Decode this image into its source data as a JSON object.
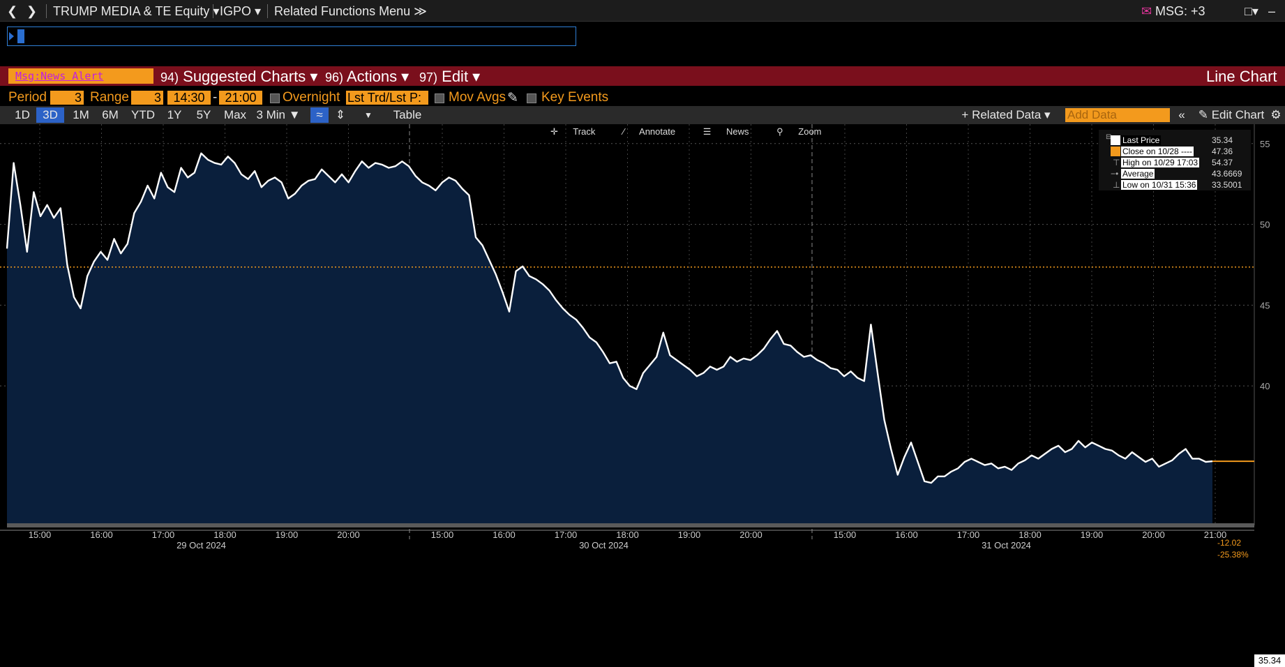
{
  "topbar": {
    "security": "TRUMP MEDIA & TE Equity ▾",
    "function": "IGPO ▾",
    "related": "Related Functions Menu ≫",
    "msg": "MSG: +3"
  },
  "redbar": {
    "alert": "Msg:News Alert",
    "suggested_num": "94)",
    "suggested": "Suggested Charts ▾",
    "actions_num": "96)",
    "actions": "Actions ▾",
    "edit_num": "97)",
    "edit": "Edit ▾",
    "chart_type": "Line Chart"
  },
  "period_row": {
    "period_label": "Period",
    "period_value": "3",
    "range_label": "Range",
    "range_value": "3",
    "time_start": "14:30",
    "dash": "-",
    "time_end": "21:00",
    "overnight": "Overnight",
    "lst_trd": "Lst Trd/Lst P:",
    "mov_avgs": "Mov Avgs",
    "key_events": "Key Events"
  },
  "toolbar": {
    "periods": [
      "1D",
      "3D",
      "1M",
      "6M",
      "YTD",
      "1Y",
      "5Y",
      "Max"
    ],
    "selected_period": "3D",
    "interval": "3 Min ▼",
    "table": "Table",
    "related_data": "+ Related Data ▾",
    "add_data_placeholder": "Add Data",
    "edit_chart": "Edit Chart"
  },
  "chart_tools": {
    "track": "Track",
    "annotate": "Annotate",
    "news": "News",
    "zoom": "Zoom"
  },
  "legend": {
    "items": [
      {
        "label": "Last Price",
        "value": "35.34"
      },
      {
        "label": "Close on 10/28 ----",
        "value": "47.36"
      },
      {
        "label": "High on 10/29 17:03",
        "value": "54.37"
      },
      {
        "label": "Average",
        "value": "43.6669"
      },
      {
        "label": "Low on 10/31 15:36",
        "value": "33.5001"
      }
    ]
  },
  "last_price_label": "35.34",
  "change_abs": "-12.02",
  "change_pct": "-25.38%",
  "colors": {
    "accent_orange": "#f39a1d",
    "bar_red": "#7a0f1c",
    "area_fill": "#0a1f3c",
    "line": "#ffffff"
  },
  "chart_data": {
    "type": "area",
    "y_ticks": [
      40,
      45,
      50,
      55
    ],
    "ylim": [
      31.5,
      56.2
    ],
    "ref_line": 47.36,
    "days": [
      {
        "date": "29 Oct 2024",
        "times": [
          "15:00",
          "16:00",
          "17:00",
          "18:00",
          "19:00",
          "20:00"
        ]
      },
      {
        "date": "30 Oct 2024",
        "times": [
          "15:00",
          "16:00",
          "17:00",
          "18:00",
          "19:00",
          "20:00"
        ]
      },
      {
        "date": "31 Oct 2024",
        "times": [
          "15:00",
          "16:00",
          "17:00",
          "18:00",
          "19:00",
          "20:00",
          "21:00"
        ]
      }
    ],
    "series": [
      {
        "values": [
          48.5,
          53.8,
          51.2,
          48.3,
          52.0,
          50.5,
          51.2,
          50.4,
          51.0,
          47.5,
          45.5,
          44.8,
          46.8,
          47.7,
          48.3,
          47.8,
          49.1,
          48.2,
          48.8,
          50.7,
          51.4,
          52.4,
          51.6,
          53.2,
          52.3,
          52.0,
          53.5,
          52.9,
          53.2,
          54.4,
          54.0,
          53.8,
          53.7,
          54.2,
          53.8,
          53.1,
          52.8,
          53.3,
          52.3,
          52.7,
          52.9,
          52.6,
          51.6,
          51.9,
          52.4,
          52.7,
          52.8,
          53.4,
          53.0,
          52.6,
          53.1,
          52.6,
          53.3,
          53.9,
          53.5,
          53.8,
          53.7,
          53.5,
          53.6,
          53.9,
          53.6,
          53.0,
          52.6,
          52.4,
          52.1,
          52.6,
          52.9,
          52.7,
          52.2,
          51.8,
          49.2,
          48.7,
          47.8,
          46.9,
          45.8,
          44.6,
          47.1,
          47.4,
          46.8,
          46.6,
          46.3,
          45.9,
          45.3,
          44.8,
          44.4,
          44.1,
          43.6,
          43.0,
          42.7,
          42.1,
          41.4,
          41.5,
          40.5,
          40.0,
          39.8,
          40.8,
          41.3,
          41.8,
          43.3,
          41.9,
          41.6,
          41.3,
          41.0,
          40.6,
          40.8,
          41.2,
          41.0,
          41.2,
          41.8,
          41.5,
          41.7,
          41.6,
          41.9,
          42.3,
          42.9,
          43.4,
          42.6,
          42.5,
          42.1,
          41.8,
          41.9,
          41.6,
          41.4,
          41.1,
          41.0,
          40.6,
          40.9,
          40.5,
          40.3,
          43.8,
          40.8,
          37.9,
          36.1,
          34.5,
          35.6,
          36.5,
          35.3,
          34.1,
          34.0,
          34.4,
          34.4,
          34.7,
          34.9,
          35.3,
          35.5,
          35.3,
          35.1,
          35.2,
          34.9,
          35.0,
          34.8,
          35.2,
          35.4,
          35.7,
          35.5,
          35.8,
          36.1,
          36.3,
          35.9,
          36.1,
          36.6,
          36.2,
          36.5,
          36.3,
          36.1,
          36.0,
          35.7,
          35.5,
          35.9,
          35.6,
          35.3,
          35.5,
          35.0,
          35.2,
          35.4,
          35.8,
          36.1,
          35.5,
          35.5,
          35.3,
          35.34
        ]
      }
    ]
  }
}
